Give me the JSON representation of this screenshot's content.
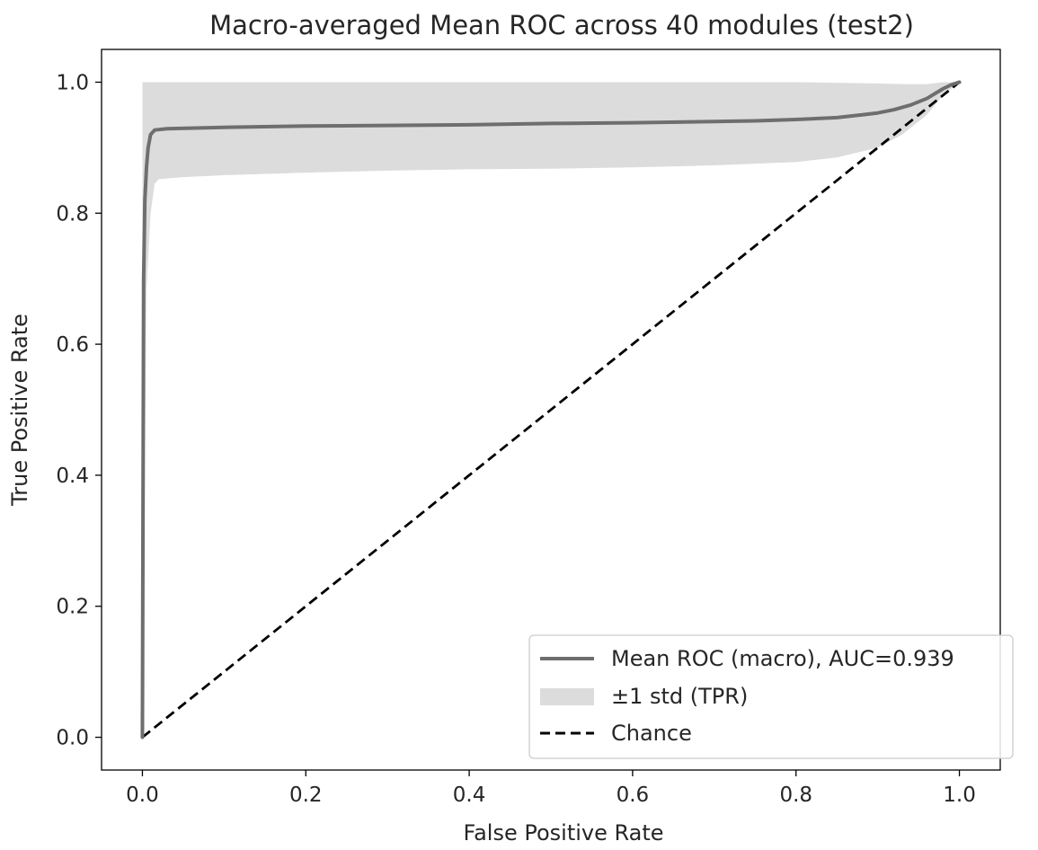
{
  "chart_data": {
    "type": "line",
    "title": "Macro-averaged Mean ROC across 40 modules (test2)",
    "xlabel": "False Positive Rate",
    "ylabel": "True Positive Rate",
    "xlim": [
      -0.05,
      1.05
    ],
    "ylim": [
      -0.05,
      1.05
    ],
    "xticks": [
      0.0,
      0.2,
      0.4,
      0.6,
      0.8,
      1.0
    ],
    "xtick_labels": [
      "0.0",
      "0.2",
      "0.4",
      "0.6",
      "0.8",
      "1.0"
    ],
    "yticks": [
      0.0,
      0.2,
      0.4,
      0.6,
      0.8,
      1.0
    ],
    "ytick_labels": [
      "0.0",
      "0.2",
      "0.4",
      "0.6",
      "0.8",
      "1.0"
    ],
    "grid": false,
    "legend_position": "lower-right",
    "series": [
      {
        "name": "Mean ROC (macro), AUC=0.939",
        "style": "solid",
        "color": "#6e6e6e",
        "x": [
          0.0,
          0.0015,
          0.003,
          0.005,
          0.007,
          0.01,
          0.015,
          0.03,
          0.1,
          0.2,
          0.3,
          0.4,
          0.5,
          0.6,
          0.7,
          0.75,
          0.8,
          0.85,
          0.88,
          0.9,
          0.92,
          0.94,
          0.96,
          0.98,
          0.99,
          1.0
        ],
        "y": [
          0.0,
          0.7,
          0.82,
          0.87,
          0.9,
          0.92,
          0.927,
          0.929,
          0.931,
          0.933,
          0.934,
          0.935,
          0.937,
          0.938,
          0.94,
          0.941,
          0.943,
          0.946,
          0.95,
          0.953,
          0.958,
          0.965,
          0.975,
          0.99,
          0.996,
          1.0
        ]
      },
      {
        "name": "±1 std (TPR)",
        "style": "band",
        "color": "#dcdcdc",
        "x": [
          0.0,
          0.005,
          0.01,
          0.015,
          0.02,
          0.05,
          0.1,
          0.2,
          0.3,
          0.4,
          0.5,
          0.6,
          0.7,
          0.8,
          0.85,
          0.9,
          0.93,
          0.96,
          0.98,
          1.0
        ],
        "upper": [
          1.0,
          1.0,
          1.0,
          1.0,
          1.0,
          1.0,
          1.0,
          1.0,
          1.0,
          1.0,
          1.0,
          1.0,
          1.0,
          1.0,
          0.999,
          0.998,
          0.997,
          0.997,
          1.0,
          1.0
        ],
        "lower": [
          0.0,
          0.68,
          0.8,
          0.845,
          0.852,
          0.855,
          0.858,
          0.862,
          0.865,
          0.867,
          0.868,
          0.87,
          0.873,
          0.878,
          0.885,
          0.9,
          0.92,
          0.95,
          0.98,
          1.0
        ]
      },
      {
        "name": "Chance",
        "style": "dashed",
        "color": "#000000",
        "x": [
          0.0,
          1.0
        ],
        "y": [
          0.0,
          1.0
        ]
      }
    ]
  }
}
